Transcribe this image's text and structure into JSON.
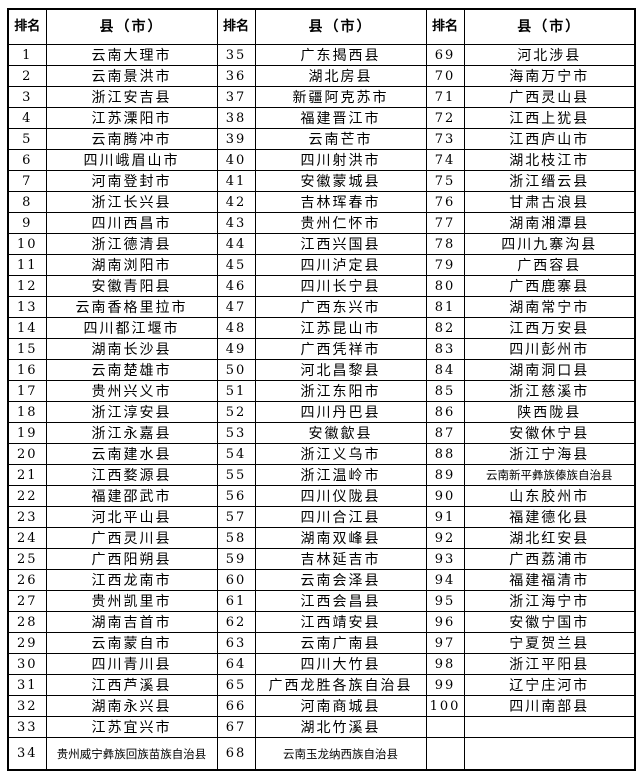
{
  "page": {
    "background_color": "#ffffff",
    "border_color": "#000000",
    "text_color": "#000000"
  },
  "table": {
    "header": {
      "rank_label": "排名",
      "county_label": "县（市）"
    },
    "groups": [
      {
        "rows": [
          {
            "rank": "1",
            "name": "云南大理市"
          },
          {
            "rank": "2",
            "name": "云南景洪市"
          },
          {
            "rank": "3",
            "name": "浙江安吉县"
          },
          {
            "rank": "4",
            "name": "江苏溧阳市"
          },
          {
            "rank": "5",
            "name": "云南腾冲市"
          },
          {
            "rank": "6",
            "name": "四川峨眉山市"
          },
          {
            "rank": "7",
            "name": "河南登封市"
          },
          {
            "rank": "8",
            "name": "浙江长兴县"
          },
          {
            "rank": "9",
            "name": "四川西昌市"
          },
          {
            "rank": "10",
            "name": "浙江德清县"
          },
          {
            "rank": "11",
            "name": "湖南浏阳市"
          },
          {
            "rank": "12",
            "name": "安徽青阳县"
          },
          {
            "rank": "13",
            "name": "云南香格里拉市"
          },
          {
            "rank": "14",
            "name": "四川都江堰市"
          },
          {
            "rank": "15",
            "name": "湖南长沙县"
          },
          {
            "rank": "16",
            "name": "云南楚雄市"
          },
          {
            "rank": "17",
            "name": "贵州兴义市"
          },
          {
            "rank": "18",
            "name": "浙江淳安县"
          },
          {
            "rank": "19",
            "name": "浙江永嘉县"
          },
          {
            "rank": "20",
            "name": "云南建水县"
          },
          {
            "rank": "21",
            "name": "江西婺源县"
          },
          {
            "rank": "22",
            "name": "福建邵武市"
          },
          {
            "rank": "23",
            "name": "河北平山县"
          },
          {
            "rank": "24",
            "name": "广西灵川县"
          },
          {
            "rank": "25",
            "name": "广西阳朔县"
          },
          {
            "rank": "26",
            "name": "江西龙南市"
          },
          {
            "rank": "27",
            "name": "贵州凯里市"
          },
          {
            "rank": "28",
            "name": "湖南吉首市"
          },
          {
            "rank": "29",
            "name": "云南蒙自市"
          },
          {
            "rank": "30",
            "name": "四川青川县"
          },
          {
            "rank": "31",
            "name": "江西芦溪县"
          },
          {
            "rank": "32",
            "name": "湖南永兴县"
          },
          {
            "rank": "33",
            "name": "江苏宜兴市"
          },
          {
            "rank": "34",
            "name": "贵州威宁彝族回族苗族自治县"
          }
        ]
      },
      {
        "rows": [
          {
            "rank": "35",
            "name": "广东揭西县"
          },
          {
            "rank": "36",
            "name": "湖北房县"
          },
          {
            "rank": "37",
            "name": "新疆阿克苏市"
          },
          {
            "rank": "38",
            "name": "福建晋江市"
          },
          {
            "rank": "39",
            "name": "云南芒市"
          },
          {
            "rank": "40",
            "name": "四川射洪市"
          },
          {
            "rank": "41",
            "name": "安徽蒙城县"
          },
          {
            "rank": "42",
            "name": "吉林珲春市"
          },
          {
            "rank": "43",
            "name": "贵州仁怀市"
          },
          {
            "rank": "44",
            "name": "江西兴国县"
          },
          {
            "rank": "45",
            "name": "四川泸定县"
          },
          {
            "rank": "46",
            "name": "四川长宁县"
          },
          {
            "rank": "47",
            "name": "广西东兴市"
          },
          {
            "rank": "48",
            "name": "江苏昆山市"
          },
          {
            "rank": "49",
            "name": "广西凭祥市"
          },
          {
            "rank": "50",
            "name": "河北昌黎县"
          },
          {
            "rank": "51",
            "name": "浙江东阳市"
          },
          {
            "rank": "52",
            "name": "四川丹巴县"
          },
          {
            "rank": "53",
            "name": "安徽歙县"
          },
          {
            "rank": "54",
            "name": "浙江义乌市"
          },
          {
            "rank": "55",
            "name": "浙江温岭市"
          },
          {
            "rank": "56",
            "name": "四川仪陇县"
          },
          {
            "rank": "57",
            "name": "四川合江县"
          },
          {
            "rank": "58",
            "name": "湖南双峰县"
          },
          {
            "rank": "59",
            "name": "吉林延吉市"
          },
          {
            "rank": "60",
            "name": "云南会泽县"
          },
          {
            "rank": "61",
            "name": "江西会昌县"
          },
          {
            "rank": "62",
            "name": "江西靖安县"
          },
          {
            "rank": "63",
            "name": "云南广南县"
          },
          {
            "rank": "64",
            "name": "四川大竹县"
          },
          {
            "rank": "65",
            "name": "广西龙胜各族自治县"
          },
          {
            "rank": "66",
            "name": "河南商城县"
          },
          {
            "rank": "67",
            "name": "湖北竹溪县"
          },
          {
            "rank": "68",
            "name": "云南玉龙纳西族自治县"
          }
        ]
      },
      {
        "rows": [
          {
            "rank": "69",
            "name": "河北涉县"
          },
          {
            "rank": "70",
            "name": "海南万宁市"
          },
          {
            "rank": "71",
            "name": "广西灵山县"
          },
          {
            "rank": "72",
            "name": "江西上犹县"
          },
          {
            "rank": "73",
            "name": "江西庐山市"
          },
          {
            "rank": "74",
            "name": "湖北枝江市"
          },
          {
            "rank": "75",
            "name": "浙江缙云县"
          },
          {
            "rank": "76",
            "name": "甘肃古浪县"
          },
          {
            "rank": "77",
            "name": "湖南湘潭县"
          },
          {
            "rank": "78",
            "name": "四川九寨沟县"
          },
          {
            "rank": "79",
            "name": "广西容县"
          },
          {
            "rank": "80",
            "name": "广西鹿寨县"
          },
          {
            "rank": "81",
            "name": "湖南常宁市"
          },
          {
            "rank": "82",
            "name": "江西万安县"
          },
          {
            "rank": "83",
            "name": "四川彭州市"
          },
          {
            "rank": "84",
            "name": "湖南洞口县"
          },
          {
            "rank": "85",
            "name": "浙江慈溪市"
          },
          {
            "rank": "86",
            "name": "陕西陇县"
          },
          {
            "rank": "87",
            "name": "安徽休宁县"
          },
          {
            "rank": "88",
            "name": "浙江宁海县"
          },
          {
            "rank": "89",
            "name": "云南新平彝族傣族自治县"
          },
          {
            "rank": "90",
            "name": "山东胶州市"
          },
          {
            "rank": "91",
            "name": "福建德化县"
          },
          {
            "rank": "92",
            "name": "湖北红安县"
          },
          {
            "rank": "93",
            "name": "广西荔浦市"
          },
          {
            "rank": "94",
            "name": "福建福清市"
          },
          {
            "rank": "95",
            "name": "浙江海宁市"
          },
          {
            "rank": "96",
            "name": "安徽宁国市"
          },
          {
            "rank": "97",
            "name": "宁夏贺兰县"
          },
          {
            "rank": "98",
            "name": "浙江平阳县"
          },
          {
            "rank": "99",
            "name": "辽宁庄河市"
          },
          {
            "rank": "100",
            "name": "四川南部县"
          },
          {
            "rank": "",
            "name": ""
          },
          {
            "rank": "",
            "name": ""
          }
        ]
      }
    ]
  }
}
